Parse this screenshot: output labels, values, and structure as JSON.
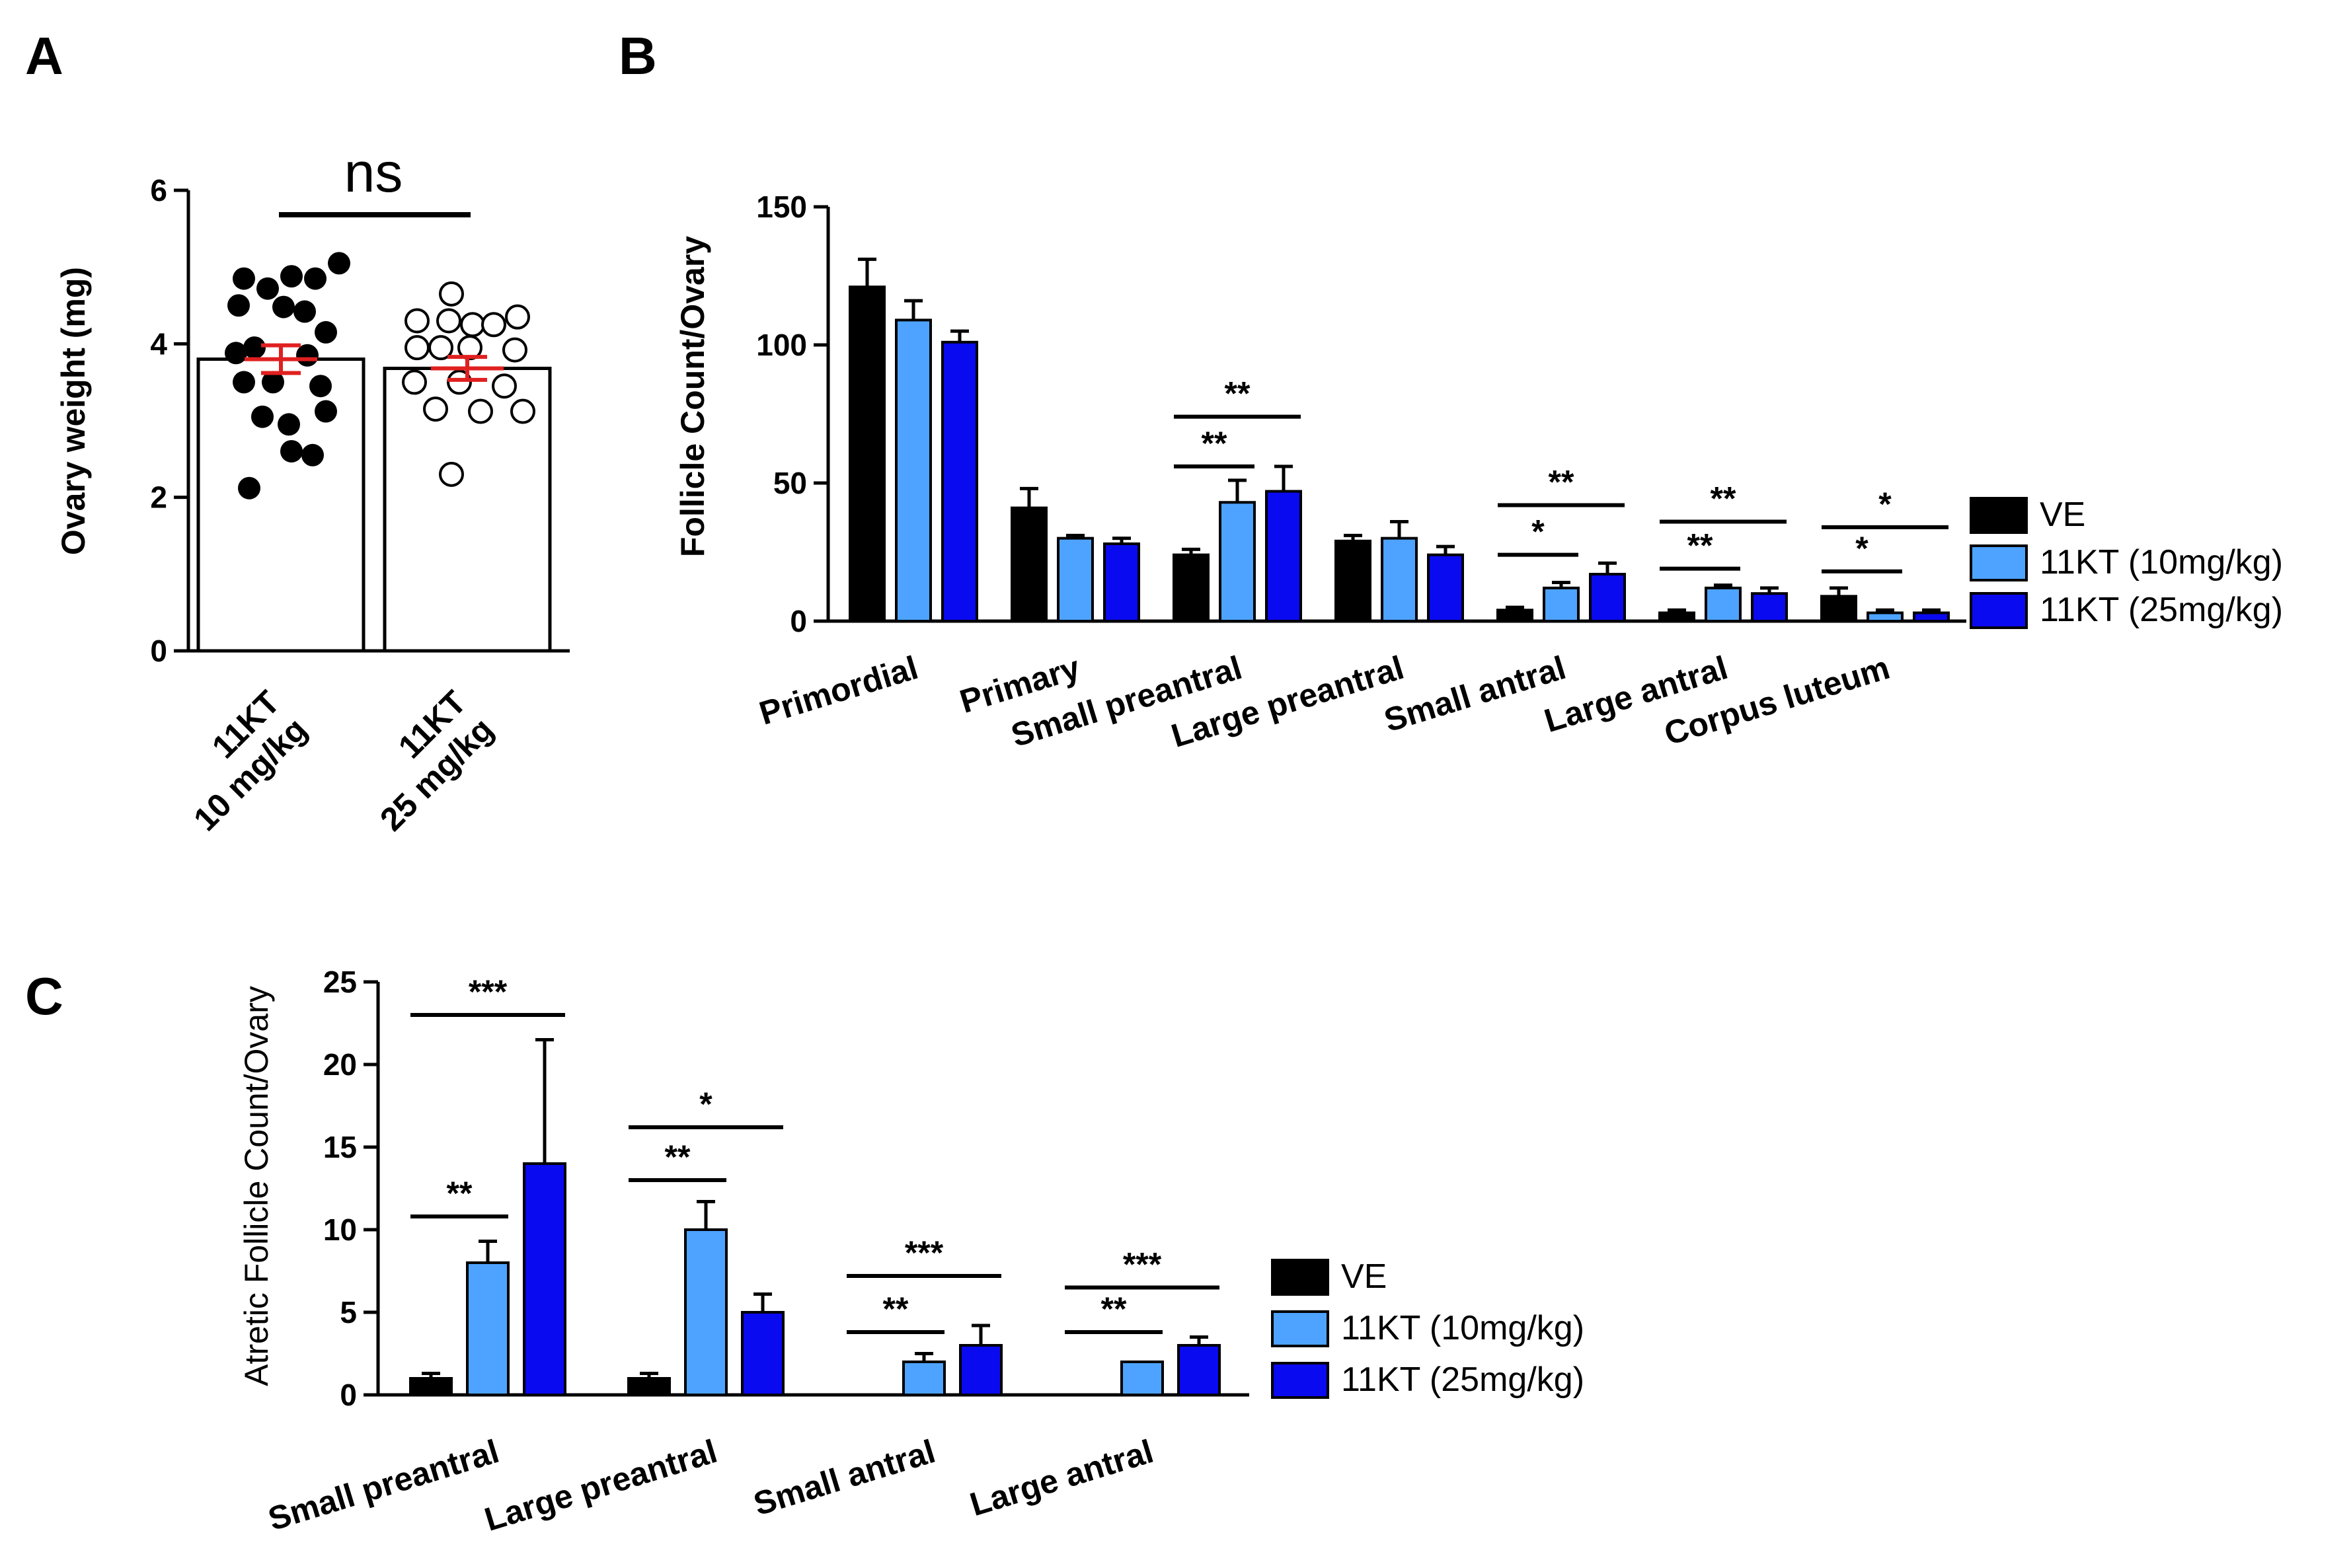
{
  "colors": {
    "ve": "#000000",
    "kt10": "#4da3ff",
    "kt25": "#0a0af0",
    "mean_line": "#e02020",
    "outline": "#000000"
  },
  "chart_data": [
    {
      "id": "A",
      "panel": "A",
      "type": "scatter",
      "ylabel": "Ovary weight (mg)",
      "ylim": [
        0,
        6
      ],
      "yticks": [
        0,
        2,
        4,
        6
      ],
      "categories": [
        "11KT\n10 mg/kg",
        "11KT\n25 mg/kg"
      ],
      "category_lines": [
        [
          "11KT",
          "10 mg/kg"
        ],
        [
          "11KT",
          "25 mg/kg"
        ]
      ],
      "means": [
        3.8,
        3.68
      ],
      "sem": [
        0.18,
        0.15
      ],
      "annotation": "ns",
      "groups": [
        {
          "name": "11KT 10 mg/kg",
          "filled": true,
          "points": [
            {
              "dx": -0.28,
              "y": 4.85
            },
            {
              "dx": -0.1,
              "y": 4.72
            },
            {
              "dx": 0.08,
              "y": 4.88
            },
            {
              "dx": 0.26,
              "y": 4.85
            },
            {
              "dx": 0.44,
              "y": 5.05
            },
            {
              "dx": -0.32,
              "y": 4.5
            },
            {
              "dx": 0.02,
              "y": 4.48
            },
            {
              "dx": 0.18,
              "y": 4.42
            },
            {
              "dx": 0.34,
              "y": 4.15
            },
            {
              "dx": -0.2,
              "y": 3.95
            },
            {
              "dx": -0.34,
              "y": 3.88
            },
            {
              "dx": 0.2,
              "y": 3.85
            },
            {
              "dx": -0.28,
              "y": 3.5
            },
            {
              "dx": -0.06,
              "y": 3.5
            },
            {
              "dx": 0.3,
              "y": 3.45
            },
            {
              "dx": -0.14,
              "y": 3.05
            },
            {
              "dx": 0.06,
              "y": 2.95
            },
            {
              "dx": 0.34,
              "y": 3.12
            },
            {
              "dx": 0.24,
              "y": 2.55
            },
            {
              "dx": 0.08,
              "y": 2.6
            },
            {
              "dx": -0.24,
              "y": 2.12
            }
          ]
        },
        {
          "name": "11KT 25 mg/kg",
          "filled": false,
          "points": [
            {
              "dx": -0.12,
              "y": 4.65
            },
            {
              "dx": -0.38,
              "y": 4.3
            },
            {
              "dx": -0.14,
              "y": 4.3
            },
            {
              "dx": 0.04,
              "y": 4.25
            },
            {
              "dx": 0.2,
              "y": 4.25
            },
            {
              "dx": 0.38,
              "y": 4.35
            },
            {
              "dx": -0.38,
              "y": 3.95
            },
            {
              "dx": -0.2,
              "y": 3.95
            },
            {
              "dx": 0.02,
              "y": 3.95
            },
            {
              "dx": 0.36,
              "y": 3.92
            },
            {
              "dx": -0.4,
              "y": 3.5
            },
            {
              "dx": -0.06,
              "y": 3.5
            },
            {
              "dx": 0.28,
              "y": 3.45
            },
            {
              "dx": -0.24,
              "y": 3.15
            },
            {
              "dx": 0.1,
              "y": 3.12
            },
            {
              "dx": 0.42,
              "y": 3.12
            },
            {
              "dx": -0.12,
              "y": 2.3
            }
          ]
        }
      ]
    },
    {
      "id": "B",
      "panel": "B",
      "type": "bar",
      "ylabel": "Follicle Count/Ovary",
      "ylim": [
        0,
        150
      ],
      "yticks": [
        0,
        50,
        100,
        150
      ],
      "categories": [
        "Primordial",
        "Primary",
        "Small preantral",
        "Large preantral",
        "Small antral",
        "Large antral",
        "Corpus luteum"
      ],
      "series": [
        {
          "name": "VE",
          "color": "#000000",
          "values": [
            121,
            41,
            24,
            29,
            4,
            3,
            9
          ],
          "errors": [
            10,
            7,
            2,
            2,
            1,
            1,
            3
          ]
        },
        {
          "name": "11KT (10mg/kg)",
          "color": "#4da3ff",
          "values": [
            109,
            30,
            43,
            30,
            12,
            12,
            3
          ],
          "errors": [
            7,
            1,
            8,
            6,
            2,
            1,
            1
          ]
        },
        {
          "name": "11KT (25mg/kg)",
          "color": "#0a0af0",
          "values": [
            101,
            28,
            47,
            24,
            17,
            10,
            3
          ],
          "errors": [
            4,
            2,
            9,
            3,
            4,
            2,
            1
          ]
        }
      ],
      "significance": [
        {
          "category": 2,
          "from": 0,
          "to": 2,
          "label": "**",
          "y": 74
        },
        {
          "category": 2,
          "from": 0,
          "to": 1,
          "label": "**",
          "y": 56
        },
        {
          "category": 4,
          "from": 0,
          "to": 2,
          "label": "**",
          "y": 42
        },
        {
          "category": 4,
          "from": 0,
          "to": 1,
          "label": "*",
          "y": 24
        },
        {
          "category": 5,
          "from": 0,
          "to": 2,
          "label": "**",
          "y": 36
        },
        {
          "category": 5,
          "from": 0,
          "to": 1,
          "label": "**",
          "y": 19
        },
        {
          "category": 6,
          "from": 0,
          "to": 2,
          "label": "*",
          "y": 34
        },
        {
          "category": 6,
          "from": 0,
          "to": 1,
          "label": "*",
          "y": 18
        }
      ]
    },
    {
      "id": "C",
      "panel": "C",
      "type": "bar",
      "ylabel": "Atretic Follicle Count/Ovary",
      "ylim": [
        0,
        25
      ],
      "yticks": [
        0,
        5,
        10,
        15,
        20,
        25
      ],
      "categories": [
        "Small preantral",
        "Large preantral",
        "Small antral",
        "Large antral"
      ],
      "series": [
        {
          "name": "VE",
          "color": "#000000",
          "values": [
            1,
            1,
            0,
            0
          ],
          "errors": [
            0.3,
            0.3,
            0,
            0
          ]
        },
        {
          "name": "11KT (10mg/kg)",
          "color": "#4da3ff",
          "values": [
            8,
            10,
            2,
            2
          ],
          "errors": [
            1.3,
            1.7,
            0.5,
            0
          ]
        },
        {
          "name": "11KT (25mg/kg)",
          "color": "#0a0af0",
          "values": [
            14,
            5,
            3,
            3
          ],
          "errors": [
            7.5,
            1.1,
            1.2,
            0.5
          ]
        }
      ],
      "significance": [
        {
          "category": 0,
          "from": 0,
          "to": 2,
          "label": "***",
          "y": 23
        },
        {
          "category": 0,
          "from": 0,
          "to": 1,
          "label": "**",
          "y": 10.8
        },
        {
          "category": 1,
          "from": 0,
          "to": 2,
          "label": "*",
          "y": 16.2
        },
        {
          "category": 1,
          "from": 0,
          "to": 1,
          "label": "**",
          "y": 13
        },
        {
          "category": 2,
          "from": 0,
          "to": 2,
          "label": "***",
          "y": 7.2
        },
        {
          "category": 2,
          "from": 0,
          "to": 1,
          "label": "**",
          "y": 3.8
        },
        {
          "category": 3,
          "from": 0,
          "to": 2,
          "label": "***",
          "y": 6.5
        },
        {
          "category": 3,
          "from": 0,
          "to": 1,
          "label": "**",
          "y": 3.8
        }
      ]
    }
  ]
}
